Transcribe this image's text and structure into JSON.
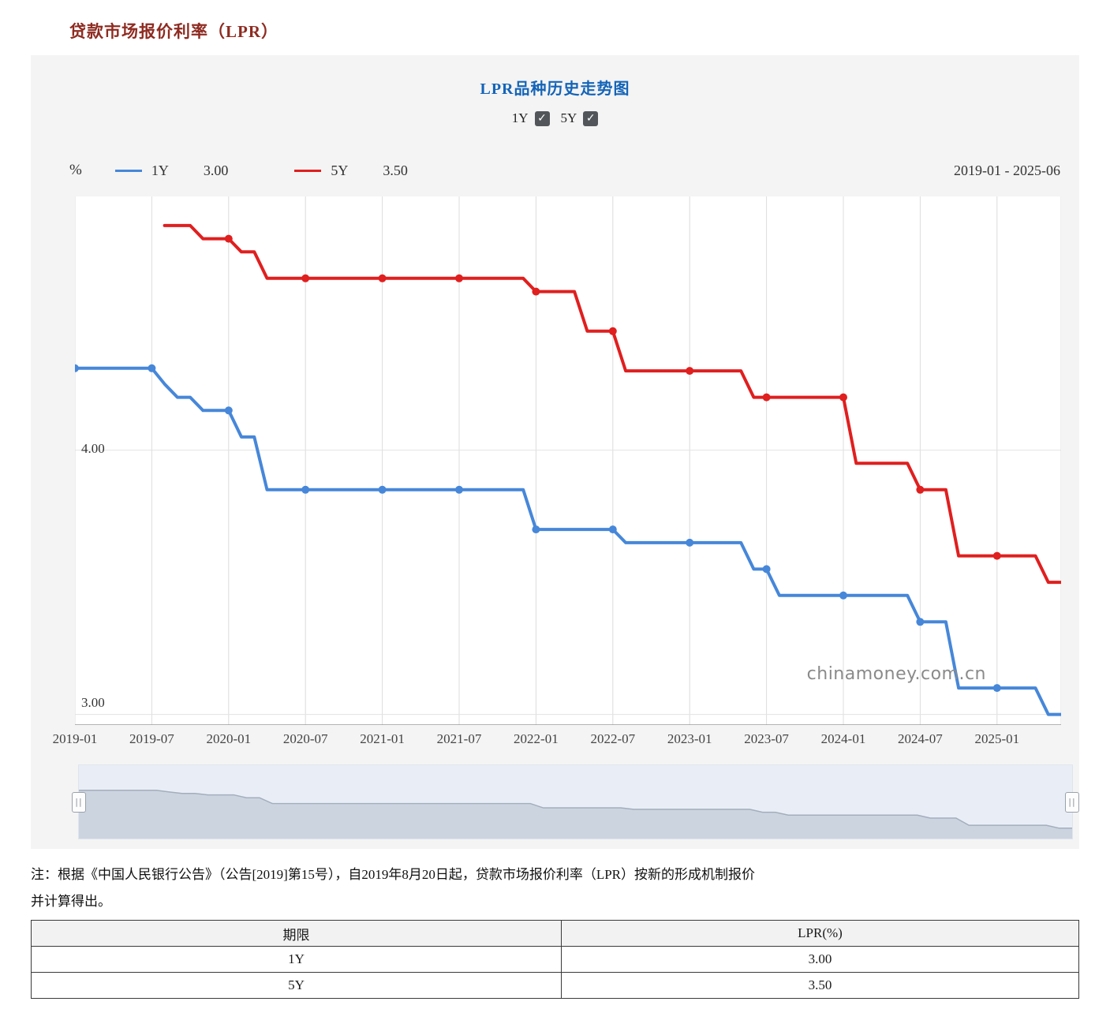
{
  "page": {
    "title": "贷款市场报价利率（LPR）"
  },
  "chart": {
    "title": "LPR品种历史走势图",
    "controls": [
      {
        "label": "1Y",
        "checked": true,
        "check_glyph": "✓"
      },
      {
        "label": "5Y",
        "checked": true,
        "check_glyph": "✓"
      }
    ],
    "unit_label": "%",
    "legend": [
      {
        "name": "1Y",
        "value": "3.00",
        "color": "#4687d9"
      },
      {
        "name": "5Y",
        "value": "3.50",
        "color": "#e01f1f"
      }
    ],
    "date_range": "2019-01 - 2025-06",
    "watermark": "chinamoney.com.cn",
    "slider_handle_glyph": "||"
  },
  "chart_data": {
    "type": "line",
    "title": "LPR品种历史走势图",
    "x_start": "2019-01",
    "x_end": "2025-06",
    "x_tick_labels": [
      "2019-01",
      "2019-07",
      "2020-01",
      "2020-07",
      "2021-01",
      "2021-07",
      "2022-01",
      "2022-07",
      "2023-01",
      "2023-07",
      "2024-01",
      "2024-07",
      "2025-01"
    ],
    "y_tick_labels": [
      "4.00",
      "3.00"
    ],
    "y_ticks": [
      4.0,
      3.0
    ],
    "y_min": 2.96,
    "y_max": 4.96,
    "ylabel": "%",
    "marker_interval_months": 6,
    "grid": true,
    "legend_position": "top-left",
    "series": [
      {
        "name": "1Y",
        "color": "#4687d9",
        "latest": "3.00",
        "values": [
          4.31,
          4.31,
          4.31,
          4.31,
          4.31,
          4.31,
          4.31,
          4.25,
          4.2,
          4.2,
          4.15,
          4.15,
          4.15,
          4.05,
          4.05,
          3.85,
          3.85,
          3.85,
          3.85,
          3.85,
          3.85,
          3.85,
          3.85,
          3.85,
          3.85,
          3.85,
          3.85,
          3.85,
          3.85,
          3.85,
          3.85,
          3.85,
          3.85,
          3.85,
          3.85,
          3.85,
          3.7,
          3.7,
          3.7,
          3.7,
          3.7,
          3.7,
          3.7,
          3.65,
          3.65,
          3.65,
          3.65,
          3.65,
          3.65,
          3.65,
          3.65,
          3.65,
          3.65,
          3.55,
          3.55,
          3.45,
          3.45,
          3.45,
          3.45,
          3.45,
          3.45,
          3.45,
          3.45,
          3.45,
          3.45,
          3.45,
          3.35,
          3.35,
          3.35,
          3.1,
          3.1,
          3.1,
          3.1,
          3.1,
          3.1,
          3.1,
          3.0,
          3.0
        ]
      },
      {
        "name": "5Y",
        "color": "#e01f1f",
        "latest": "3.50",
        "values": [
          null,
          null,
          null,
          null,
          null,
          null,
          null,
          4.85,
          4.85,
          4.85,
          4.8,
          4.8,
          4.8,
          4.75,
          4.75,
          4.65,
          4.65,
          4.65,
          4.65,
          4.65,
          4.65,
          4.65,
          4.65,
          4.65,
          4.65,
          4.65,
          4.65,
          4.65,
          4.65,
          4.65,
          4.65,
          4.65,
          4.65,
          4.65,
          4.65,
          4.65,
          4.6,
          4.6,
          4.6,
          4.6,
          4.45,
          4.45,
          4.45,
          4.3,
          4.3,
          4.3,
          4.3,
          4.3,
          4.3,
          4.3,
          4.3,
          4.3,
          4.3,
          4.2,
          4.2,
          4.2,
          4.2,
          4.2,
          4.2,
          4.2,
          4.2,
          3.95,
          3.95,
          3.95,
          3.95,
          3.95,
          3.85,
          3.85,
          3.85,
          3.6,
          3.6,
          3.6,
          3.6,
          3.6,
          3.6,
          3.6,
          3.5,
          3.5
        ]
      }
    ]
  },
  "note": {
    "line1": "注：根据《中国人民银行公告》（公告[2019]第15号），自2019年8月20日起，贷款市场报价利率（LPR）按新的形成机制报价",
    "line2": "并计算得出。"
  },
  "table": {
    "headers": [
      "期限",
      "LPR(%)"
    ],
    "rows": [
      [
        "1Y",
        "3.00"
      ],
      [
        "5Y",
        "3.50"
      ]
    ]
  }
}
